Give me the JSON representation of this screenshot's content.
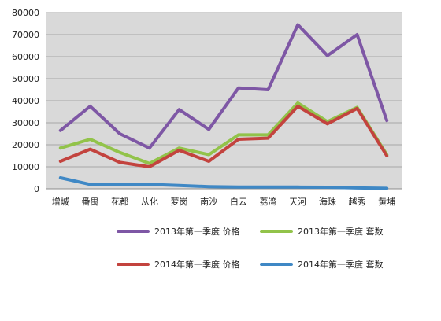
{
  "chart_data": {
    "type": "line",
    "categories": [
      "增城",
      "番禺",
      "花都",
      "从化",
      "萝岗",
      "南沙",
      "白云",
      "荔湾",
      "天河",
      "海珠",
      "越秀",
      "黄埔"
    ],
    "ylim": [
      0,
      80000
    ],
    "y_ticks": [
      0,
      10000,
      20000,
      30000,
      40000,
      50000,
      60000,
      70000,
      80000
    ],
    "grid": true,
    "legend_position": "bottom",
    "series": [
      {
        "name": "2013年第一季度 价格",
        "color": "#7e57a5",
        "values": [
          26500,
          37500,
          25000,
          18500,
          36000,
          27000,
          45800,
          45000,
          74500,
          60500,
          70000,
          31000
        ]
      },
      {
        "name": "2013年第一季度 套数",
        "color": "#92c34a",
        "values": [
          18500,
          22500,
          16500,
          11500,
          18500,
          15500,
          24500,
          24500,
          39000,
          30500,
          37000,
          15500
        ]
      },
      {
        "name": "2014年第一季度 价格",
        "color": "#c3433e",
        "values": [
          12500,
          18000,
          12000,
          10000,
          17500,
          12500,
          22500,
          23000,
          37500,
          29500,
          36500,
          15000
        ]
      },
      {
        "name": "2014年第一季度 套数",
        "color": "#3f88c5",
        "values": [
          5000,
          2000,
          2000,
          2000,
          1500,
          1000,
          800,
          800,
          800,
          700,
          400,
          200
        ]
      }
    ]
  }
}
